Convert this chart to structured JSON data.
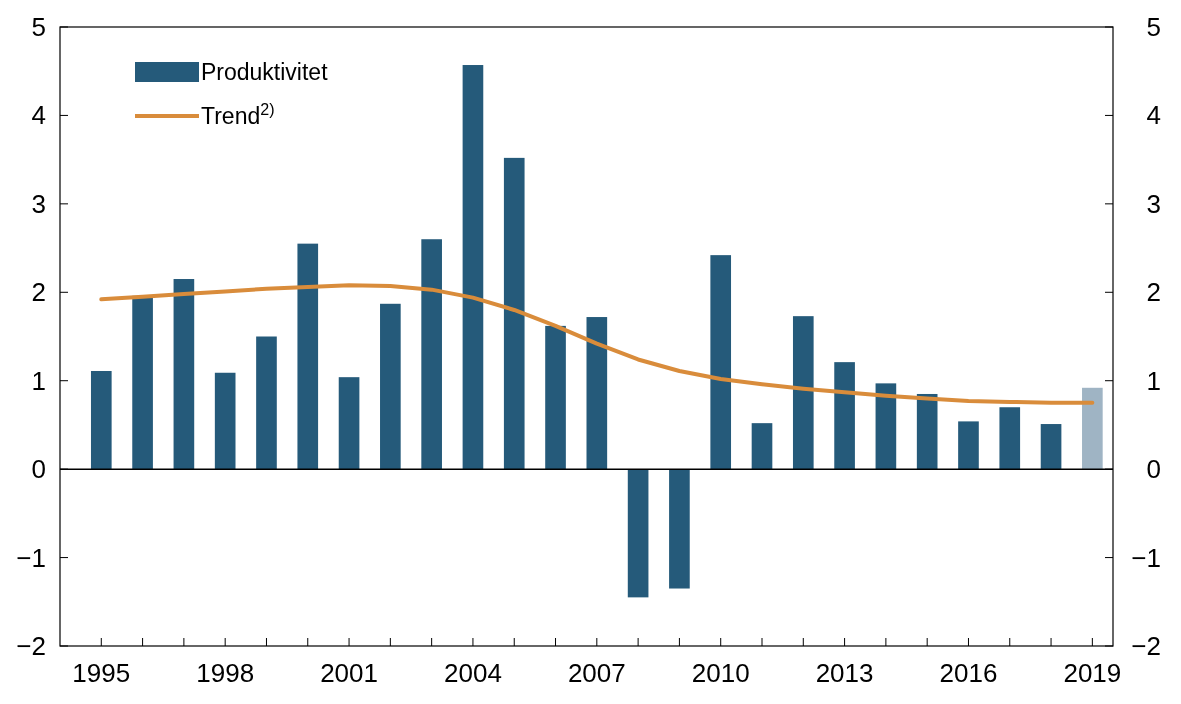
{
  "chart_data": {
    "type": "bar",
    "x": [
      1995,
      1996,
      1997,
      1998,
      1999,
      2000,
      2001,
      2002,
      2003,
      2004,
      2005,
      2006,
      2007,
      2008,
      2009,
      2010,
      2011,
      2012,
      2013,
      2014,
      2015,
      2016,
      2017,
      2018,
      2019
    ],
    "series": [
      {
        "name": "Produktivitet",
        "color": "#255a7a",
        "colors": [
          "#255a7a",
          "#255a7a",
          "#255a7a",
          "#255a7a",
          "#255a7a",
          "#255a7a",
          "#255a7a",
          "#255a7a",
          "#255a7a",
          "#255a7a",
          "#255a7a",
          "#255a7a",
          "#255a7a",
          "#255a7a",
          "#255a7a",
          "#255a7a",
          "#255a7a",
          "#255a7a",
          "#255a7a",
          "#255a7a",
          "#255a7a",
          "#255a7a",
          "#255a7a",
          "#255a7a",
          "#9fb4c4"
        ],
        "values": [
          1.11,
          1.96,
          2.15,
          1.09,
          1.5,
          2.55,
          1.04,
          1.87,
          2.6,
          4.57,
          3.52,
          1.62,
          1.72,
          -1.45,
          -1.35,
          2.42,
          0.52,
          1.73,
          1.21,
          0.97,
          0.85,
          0.54,
          0.7,
          0.51,
          0.92
        ]
      },
      {
        "name": "Trend$^{2)}$",
        "type": "line",
        "color": "#d98c3b",
        "values": [
          1.92,
          1.95,
          1.98,
          2.01,
          2.04,
          2.06,
          2.08,
          2.07,
          2.03,
          1.94,
          1.8,
          1.62,
          1.42,
          1.24,
          1.11,
          1.02,
          0.96,
          0.91,
          0.87,
          0.83,
          0.8,
          0.77,
          0.76,
          0.75,
          0.75
        ]
      }
    ],
    "xlim": [
      1994,
      2019.5
    ],
    "xticks": [
      1995,
      {
        "value": 1996,
        "label": null
      },
      {
        "value": 1997,
        "label": null
      },
      1998,
      {
        "value": 1999,
        "label": null
      },
      {
        "value": 2000,
        "label": null
      },
      2001,
      {
        "value": 2002,
        "label": null
      },
      {
        "value": 2003,
        "label": null
      },
      2004,
      {
        "value": 2005,
        "label": null
      },
      {
        "value": 2006,
        "label": null
      },
      2007,
      {
        "value": 2008,
        "label": null
      },
      {
        "value": 2009,
        "label": null
      },
      2010,
      {
        "value": 2011,
        "label": null
      },
      {
        "value": 2012,
        "label": null
      },
      2013,
      {
        "value": 2014,
        "label": null
      },
      {
        "value": 2015,
        "label": null
      },
      2016,
      {
        "value": 2017,
        "label": null
      },
      {
        "value": 2018,
        "label": null
      },
      2019
    ],
    "ylim": [
      -2,
      5
    ],
    "yticks": [
      {
        "value": -2,
        "label": "−2"
      },
      {
        "value": -1,
        "label": "−1"
      },
      0,
      1,
      2,
      3,
      4,
      5
    ],
    "y2lim": [
      -2,
      5
    ],
    "y2ticks": [
      {
        "value": -2,
        "label": "−2"
      },
      {
        "value": -1,
        "label": "−1"
      },
      0,
      1,
      2,
      3,
      4,
      5
    ],
    "ref_lines": [
      {
        "axis": "y",
        "value": 0,
        "color": "#000000"
      }
    ],
    "legend": "top left",
    "grid": false
  }
}
